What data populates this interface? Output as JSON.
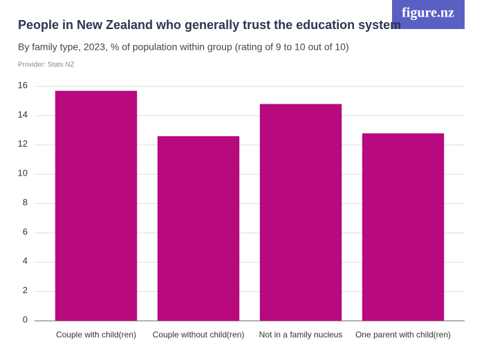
{
  "logo": "figure.nz",
  "chart_data": {
    "type": "bar",
    "title": "People in New Zealand who generally trust the education system",
    "subtitle": "By family type, 2023, % of population within group (rating of 9 to 10 out of 10)",
    "source": "Provider: Stats NZ",
    "categories": [
      "Couple with child(ren)",
      "Couple without child(ren)",
      "Not in a family nucleus",
      "One parent with child(ren)"
    ],
    "values": [
      15.7,
      12.6,
      14.8,
      12.8
    ],
    "color": "#b8097f",
    "ylim": [
      0,
      16
    ],
    "yticks": [
      0,
      2,
      4,
      6,
      8,
      10,
      12,
      14,
      16
    ],
    "grid": true
  }
}
